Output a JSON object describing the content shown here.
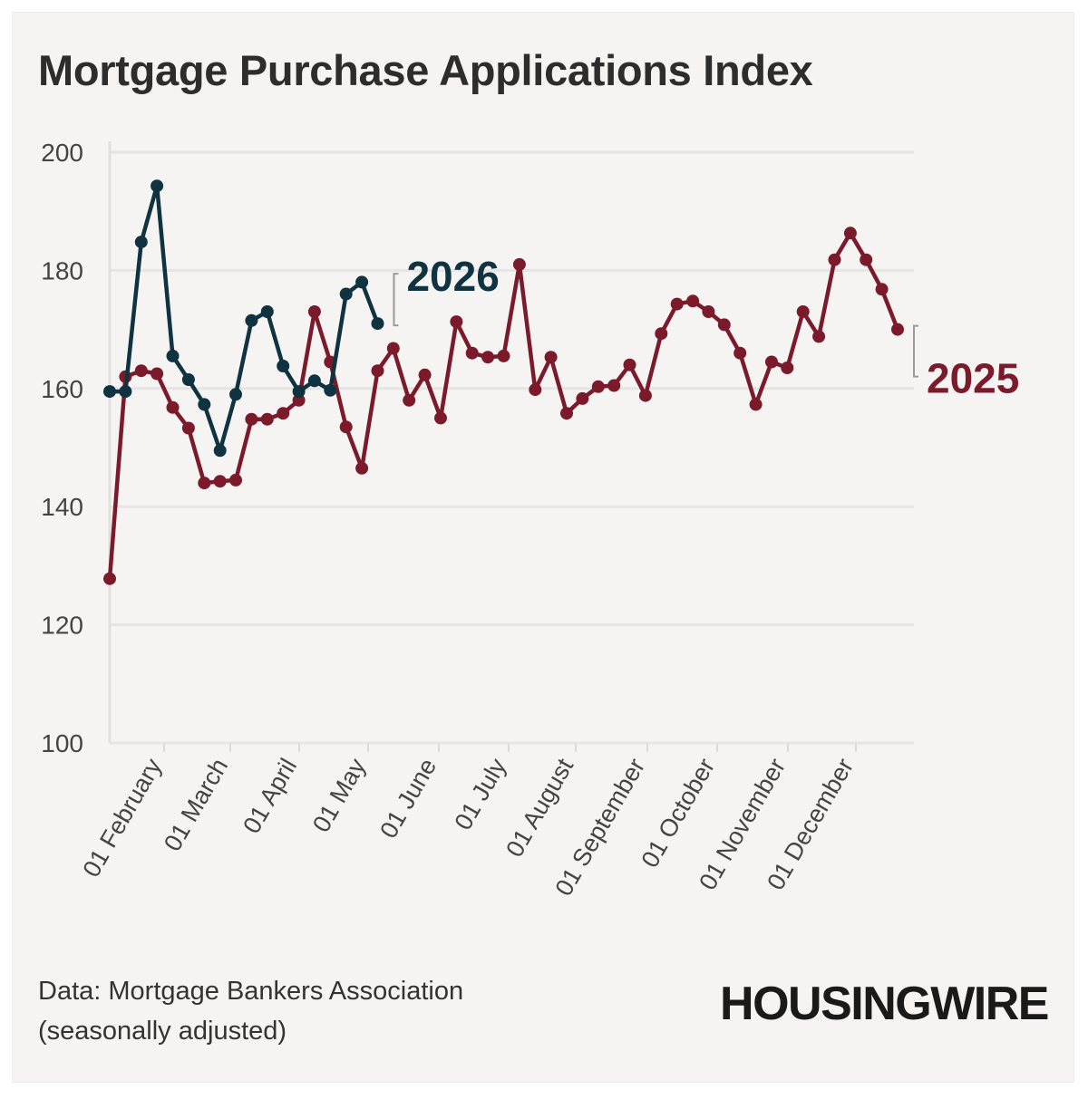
{
  "chart_data": {
    "type": "line",
    "title": "Mortgage Purchase Applications Index",
    "xlabel": "",
    "ylabel": "",
    "ylim": [
      100,
      200
    ],
    "y_ticks": [
      100,
      120,
      140,
      160,
      180,
      200
    ],
    "x_tick_labels": [
      "01 February",
      "01 March",
      "01 April",
      "01 May",
      "01 June",
      "01 July",
      "01 August",
      "01 September",
      "01 October",
      "01 November",
      "01 December"
    ],
    "grid": true,
    "legend": "direct-labels",
    "series": [
      {
        "name": "2026",
        "color": "#0f3340",
        "values": [
          159.5,
          159.5,
          184.8,
          194.3,
          165.5,
          161.5,
          157.3,
          149.5,
          159.0,
          171.5,
          173.0,
          163.8,
          159.5,
          161.3,
          159.7,
          176.0,
          178.0,
          171.0
        ]
      },
      {
        "name": "2025",
        "color": "#7a1a2a",
        "values": [
          127.8,
          162.0,
          163.0,
          162.5,
          156.8,
          153.3,
          144.0,
          144.3,
          144.5,
          154.8,
          154.8,
          155.8,
          158.0,
          173.0,
          164.5,
          153.5,
          146.5,
          163.0,
          166.8,
          158.0,
          162.3,
          155.0,
          171.3,
          166.0,
          165.3,
          165.5,
          181.0,
          159.8,
          165.3,
          155.8,
          158.3,
          160.3,
          160.5,
          164.0,
          158.8,
          169.3,
          174.3,
          174.8,
          173.0,
          170.8,
          166.0,
          157.3,
          164.5,
          163.5,
          173.0,
          168.8,
          181.8,
          186.3,
          181.8,
          176.8,
          170.0
        ]
      }
    ]
  },
  "footer": {
    "source_line1": "Data: Mortgage Bankers Association",
    "source_line2": "(seasonally adjusted)",
    "logo_text": "HOUSINGWIRE"
  }
}
